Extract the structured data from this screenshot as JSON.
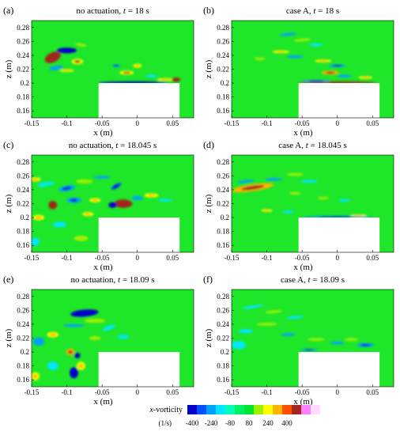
{
  "chart_data": [
    {
      "type": "heatmap",
      "panel_label": "(a)",
      "title_prefix": "no actuation, ",
      "title_var": "t",
      "title_suffix": " = 18 s",
      "xlabel": "x (m)",
      "ylabel": "z (m)",
      "xlim": [
        -0.15,
        0.08
      ],
      "ylim": [
        0.15,
        0.29
      ],
      "xticks": [
        -0.15,
        -0.1,
        -0.05,
        0,
        0.05
      ],
      "xticklabels": [
        "-0.15",
        "-0.1",
        "-0.05",
        "0",
        "0.05"
      ],
      "yticks": [
        0.16,
        0.18,
        0.2,
        0.22,
        0.24,
        0.26,
        0.28
      ],
      "yticklabels": [
        "0.16",
        "0.18",
        "0.2",
        "0.22",
        "0.24",
        "0.26",
        "0.28"
      ],
      "obstacle": {
        "x": [
          -0.055,
          0.06
        ],
        "z": [
          0.15,
          0.2
        ]
      },
      "vortices": [
        {
          "x": -0.12,
          "z": 0.237,
          "rx": 0.012,
          "rz": 0.007,
          "v": 400,
          "rot": 25
        },
        {
          "x": -0.1,
          "z": 0.247,
          "rx": 0.014,
          "rz": 0.004,
          "v": -400,
          "rot": 0
        },
        {
          "x": -0.085,
          "z": 0.231,
          "rx": 0.008,
          "rz": 0.004,
          "v": 300,
          "rot": 0
        },
        {
          "x": -0.115,
          "z": 0.222,
          "rx": 0.01,
          "rz": 0.003,
          "v": -200,
          "rot": 10
        },
        {
          "x": -0.1,
          "z": 0.218,
          "rx": 0.01,
          "rz": 0.002,
          "v": 240,
          "rot": 0
        },
        {
          "x": -0.08,
          "z": 0.255,
          "rx": 0.008,
          "rz": 0.002,
          "v": 160,
          "rot": -10
        },
        {
          "x": -0.03,
          "z": 0.225,
          "rx": 0.006,
          "rz": 0.002,
          "v": -240,
          "rot": 0
        },
        {
          "x": -0.015,
          "z": 0.215,
          "rx": 0.01,
          "rz": 0.003,
          "v": 300,
          "rot": 0
        },
        {
          "x": 0.0,
          "z": 0.225,
          "rx": 0.006,
          "rz": 0.003,
          "v": 240,
          "rot": 0
        },
        {
          "x": -0.005,
          "z": 0.201,
          "rx": 0.05,
          "rz": 0.0015,
          "v": -400,
          "rot": 0
        },
        {
          "x": 0.04,
          "z": 0.205,
          "rx": 0.012,
          "rz": 0.002,
          "v": 240,
          "rot": 0
        },
        {
          "x": 0.055,
          "z": 0.205,
          "rx": 0.006,
          "rz": 0.003,
          "v": 400,
          "rot": 0
        },
        {
          "x": 0.02,
          "z": 0.21,
          "rx": 0.008,
          "rz": 0.002,
          "v": -160,
          "rot": 0
        }
      ]
    },
    {
      "type": "heatmap",
      "panel_label": "(b)",
      "title_prefix": "case A, ",
      "title_var": "t",
      "title_suffix": " = 18 s",
      "xlabel": "x (m)",
      "ylabel": "z (m)",
      "xlim": [
        -0.15,
        0.08
      ],
      "ylim": [
        0.15,
        0.29
      ],
      "xticks": [
        -0.15,
        -0.1,
        -0.05,
        0,
        0.05
      ],
      "xticklabels": [
        "-0.15",
        "-0.1",
        "-0.05",
        "0",
        "0.05"
      ],
      "yticks": [
        0.16,
        0.18,
        0.2,
        0.22,
        0.24,
        0.26,
        0.28
      ],
      "yticklabels": [
        "0.16",
        "0.18",
        "0.2",
        "0.22",
        "0.24",
        "0.26",
        "0.28"
      ],
      "obstacle": {
        "x": [
          -0.055,
          0.06
        ],
        "z": [
          0.15,
          0.2
        ]
      },
      "vortices": [
        {
          "x": -0.07,
          "z": 0.27,
          "rx": 0.012,
          "rz": 0.002,
          "v": -200,
          "rot": 5
        },
        {
          "x": -0.05,
          "z": 0.262,
          "rx": 0.012,
          "rz": 0.002,
          "v": 200,
          "rot": 5
        },
        {
          "x": -0.03,
          "z": 0.255,
          "rx": 0.01,
          "rz": 0.002,
          "v": -160,
          "rot": 0
        },
        {
          "x": -0.08,
          "z": 0.245,
          "rx": 0.012,
          "rz": 0.002,
          "v": 240,
          "rot": 0
        },
        {
          "x": -0.06,
          "z": 0.238,
          "rx": 0.012,
          "rz": 0.002,
          "v": -200,
          "rot": 0
        },
        {
          "x": -0.11,
          "z": 0.235,
          "rx": 0.008,
          "rz": 0.002,
          "v": 200,
          "rot": 0
        },
        {
          "x": -0.02,
          "z": 0.232,
          "rx": 0.012,
          "rz": 0.002,
          "v": 240,
          "rot": 0
        },
        {
          "x": 0.0,
          "z": 0.225,
          "rx": 0.012,
          "rz": 0.002,
          "v": -240,
          "rot": 0
        },
        {
          "x": -0.01,
          "z": 0.215,
          "rx": 0.012,
          "rz": 0.003,
          "v": 320,
          "rot": 0
        },
        {
          "x": 0.01,
          "z": 0.21,
          "rx": 0.01,
          "rz": 0.002,
          "v": -200,
          "rot": 0
        },
        {
          "x": 0.0,
          "z": 0.201,
          "rx": 0.055,
          "rz": 0.0015,
          "v": 400,
          "rot": 0
        },
        {
          "x": -0.03,
          "z": 0.203,
          "rx": 0.02,
          "rz": 0.0015,
          "v": -240,
          "rot": 0
        },
        {
          "x": 0.04,
          "z": 0.208,
          "rx": 0.01,
          "rz": 0.002,
          "v": 240,
          "rot": 0
        }
      ]
    },
    {
      "type": "heatmap",
      "panel_label": "(c)",
      "title_prefix": "no actuation, ",
      "title_var": "t",
      "title_suffix": " = 18.045 s",
      "xlabel": "x (m)",
      "ylabel": "z (m)",
      "xlim": [
        -0.15,
        0.08
      ],
      "ylim": [
        0.15,
        0.29
      ],
      "xticks": [
        -0.15,
        -0.1,
        -0.05,
        0,
        0.05
      ],
      "xticklabels": [
        "-0.15",
        "-0.1",
        "-0.05",
        "0",
        "0.05"
      ],
      "yticks": [
        0.16,
        0.18,
        0.2,
        0.22,
        0.24,
        0.26,
        0.28
      ],
      "yticklabels": [
        "0.16",
        "0.18",
        "0.2",
        "0.22",
        "0.24",
        "0.26",
        "0.28"
      ],
      "obstacle": {
        "x": [
          -0.055,
          0.06
        ],
        "z": [
          0.15,
          0.2
        ]
      },
      "vortices": [
        {
          "x": -0.145,
          "z": 0.255,
          "rx": 0.008,
          "rz": 0.003,
          "v": 240,
          "rot": 0
        },
        {
          "x": -0.13,
          "z": 0.248,
          "rx": 0.012,
          "rz": 0.003,
          "v": -160,
          "rot": 10
        },
        {
          "x": -0.1,
          "z": 0.242,
          "rx": 0.012,
          "rz": 0.004,
          "v": -240,
          "rot": 10
        },
        {
          "x": -0.075,
          "z": 0.252,
          "rx": 0.012,
          "rz": 0.003,
          "v": 160,
          "rot": 0
        },
        {
          "x": -0.05,
          "z": 0.258,
          "rx": 0.012,
          "rz": 0.002,
          "v": -200,
          "rot": 0
        },
        {
          "x": -0.03,
          "z": 0.245,
          "rx": 0.008,
          "rz": 0.003,
          "v": -320,
          "rot": 30
        },
        {
          "x": -0.09,
          "z": 0.225,
          "rx": 0.01,
          "rz": 0.004,
          "v": -240,
          "rot": 0
        },
        {
          "x": -0.12,
          "z": 0.218,
          "rx": 0.006,
          "rz": 0.006,
          "v": 400,
          "rot": 0
        },
        {
          "x": -0.06,
          "z": 0.225,
          "rx": 0.008,
          "rz": 0.003,
          "v": 240,
          "rot": 0
        },
        {
          "x": -0.02,
          "z": 0.22,
          "rx": 0.013,
          "rz": 0.006,
          "v": 400,
          "rot": 0
        },
        {
          "x": -0.035,
          "z": 0.218,
          "rx": 0.006,
          "rz": 0.004,
          "v": -400,
          "rot": 0
        },
        {
          "x": 0.0,
          "z": 0.228,
          "rx": 0.008,
          "rz": 0.003,
          "v": -200,
          "rot": 0
        },
        {
          "x": 0.02,
          "z": 0.232,
          "rx": 0.01,
          "rz": 0.003,
          "v": 240,
          "rot": 0
        },
        {
          "x": 0.04,
          "z": 0.225,
          "rx": 0.01,
          "rz": 0.002,
          "v": -160,
          "rot": 0
        },
        {
          "x": -0.07,
          "z": 0.205,
          "rx": 0.008,
          "rz": 0.003,
          "v": 240,
          "rot": 0
        },
        {
          "x": -0.11,
          "z": 0.19,
          "rx": 0.01,
          "rz": 0.004,
          "v": -160,
          "rot": 0
        },
        {
          "x": -0.14,
          "z": 0.2,
          "rx": 0.008,
          "rz": 0.004,
          "v": 240,
          "rot": 0
        },
        {
          "x": -0.145,
          "z": 0.165,
          "rx": 0.006,
          "rz": 0.006,
          "v": -160,
          "rot": 0
        },
        {
          "x": -0.08,
          "z": 0.17,
          "rx": 0.01,
          "rz": 0.004,
          "v": 160,
          "rot": 0
        }
      ]
    },
    {
      "type": "heatmap",
      "panel_label": "(d)",
      "title_prefix": "case A, ",
      "title_var": "t",
      "title_suffix": " = 18.045 s",
      "xlabel": "x (m)",
      "ylabel": "z (m)",
      "xlim": [
        -0.15,
        0.08
      ],
      "ylim": [
        0.15,
        0.29
      ],
      "xticks": [
        -0.15,
        -0.1,
        -0.05,
        0,
        0.05
      ],
      "xticklabels": [
        "-0.15",
        "-0.1",
        "-0.05",
        "0",
        "0.05"
      ],
      "yticks": [
        0.16,
        0.18,
        0.2,
        0.22,
        0.24,
        0.26,
        0.28
      ],
      "yticklabels": [
        "0.16",
        "0.18",
        "0.2",
        "0.22",
        "0.24",
        "0.26",
        "0.28"
      ],
      "obstacle": {
        "x": [
          -0.055,
          0.06
        ],
        "z": [
          0.15,
          0.2
        ]
      },
      "vortices": [
        {
          "x": -0.12,
          "z": 0.243,
          "rx": 0.03,
          "rz": 0.005,
          "v": 320,
          "rot": 8
        },
        {
          "x": -0.13,
          "z": 0.252,
          "rx": 0.012,
          "rz": 0.002,
          "v": -200,
          "rot": 5
        },
        {
          "x": -0.09,
          "z": 0.255,
          "rx": 0.012,
          "rz": 0.002,
          "v": -200,
          "rot": 0
        },
        {
          "x": -0.06,
          "z": 0.262,
          "rx": 0.012,
          "rz": 0.002,
          "v": 200,
          "rot": 0
        },
        {
          "x": -0.04,
          "z": 0.252,
          "rx": 0.012,
          "rz": 0.002,
          "v": -160,
          "rot": 0
        },
        {
          "x": -0.06,
          "z": 0.235,
          "rx": 0.008,
          "rz": 0.002,
          "v": 200,
          "rot": 0
        },
        {
          "x": -0.02,
          "z": 0.228,
          "rx": 0.008,
          "rz": 0.002,
          "v": 200,
          "rot": 0
        },
        {
          "x": 0.01,
          "z": 0.225,
          "rx": 0.008,
          "rz": 0.002,
          "v": -160,
          "rot": 0
        },
        {
          "x": -0.1,
          "z": 0.21,
          "rx": 0.008,
          "rz": 0.002,
          "v": 240,
          "rot": 0
        },
        {
          "x": -0.07,
          "z": 0.208,
          "rx": 0.008,
          "rz": 0.002,
          "v": -160,
          "rot": 0
        },
        {
          "x": 0.0,
          "z": 0.201,
          "rx": 0.05,
          "rz": 0.0015,
          "v": -240,
          "rot": 0
        },
        {
          "x": 0.03,
          "z": 0.203,
          "rx": 0.012,
          "rz": 0.0015,
          "v": 240,
          "rot": 0
        }
      ]
    },
    {
      "type": "heatmap",
      "panel_label": "(e)",
      "title_prefix": "no actuation, ",
      "title_var": "t",
      "title_suffix": " = 18.09 s",
      "xlabel": "x (m)",
      "ylabel": "z (m)",
      "xlim": [
        -0.15,
        0.08
      ],
      "ylim": [
        0.15,
        0.29
      ],
      "xticks": [
        -0.15,
        -0.1,
        -0.05,
        0,
        0.05
      ],
      "xticklabels": [
        "-0.15",
        "-0.1",
        "-0.05",
        "0",
        "0.05"
      ],
      "yticks": [
        0.16,
        0.18,
        0.2,
        0.22,
        0.24,
        0.26,
        0.28
      ],
      "yticklabels": [
        "0.16",
        "0.18",
        "0.2",
        "0.22",
        "0.24",
        "0.26",
        "0.28"
      ],
      "obstacle": {
        "x": [
          -0.055,
          0.06
        ],
        "z": [
          0.15,
          0.2
        ]
      },
      "vortices": [
        {
          "x": -0.075,
          "z": 0.256,
          "rx": 0.02,
          "rz": 0.005,
          "v": -400,
          "rot": 5
        },
        {
          "x": -0.06,
          "z": 0.245,
          "rx": 0.015,
          "rz": 0.003,
          "v": 200,
          "rot": 0
        },
        {
          "x": -0.09,
          "z": 0.238,
          "rx": 0.015,
          "rz": 0.002,
          "v": -200,
          "rot": 0
        },
        {
          "x": -0.04,
          "z": 0.235,
          "rx": 0.01,
          "rz": 0.003,
          "v": -160,
          "rot": 20
        },
        {
          "x": -0.12,
          "z": 0.225,
          "rx": 0.008,
          "rz": 0.004,
          "v": 240,
          "rot": 0
        },
        {
          "x": -0.14,
          "z": 0.215,
          "rx": 0.008,
          "rz": 0.006,
          "v": -200,
          "rot": 0
        },
        {
          "x": -0.095,
          "z": 0.2,
          "rx": 0.006,
          "rz": 0.005,
          "v": 320,
          "rot": 0
        },
        {
          "x": -0.085,
          "z": 0.195,
          "rx": 0.004,
          "rz": 0.004,
          "v": -400,
          "rot": 0
        },
        {
          "x": -0.09,
          "z": 0.17,
          "rx": 0.006,
          "rz": 0.008,
          "v": -400,
          "rot": 0
        },
        {
          "x": -0.08,
          "z": 0.18,
          "rx": 0.006,
          "rz": 0.006,
          "v": 240,
          "rot": 0
        },
        {
          "x": -0.12,
          "z": 0.18,
          "rx": 0.008,
          "rz": 0.006,
          "v": -160,
          "rot": 0
        },
        {
          "x": -0.145,
          "z": 0.165,
          "rx": 0.006,
          "rz": 0.006,
          "v": 240,
          "rot": 0
        },
        {
          "x": -0.06,
          "z": 0.22,
          "rx": 0.008,
          "rz": 0.003,
          "v": 160,
          "rot": 0
        },
        {
          "x": -0.02,
          "z": 0.222,
          "rx": 0.008,
          "rz": 0.003,
          "v": -160,
          "rot": 0
        }
      ]
    },
    {
      "type": "heatmap",
      "panel_label": "(f)",
      "title_prefix": "case A, ",
      "title_var": "t",
      "title_suffix": " = 18.09 s",
      "xlabel": "x (m)",
      "ylabel": "z (m)",
      "xlim": [
        -0.15,
        0.08
      ],
      "ylim": [
        0.15,
        0.29
      ],
      "xticks": [
        -0.15,
        -0.1,
        -0.05,
        0,
        0.05
      ],
      "xticklabels": [
        "-0.15",
        "-0.1",
        "-0.05",
        "0",
        "0.05"
      ],
      "yticks": [
        0.16,
        0.18,
        0.2,
        0.22,
        0.24,
        0.26,
        0.28
      ],
      "yticklabels": [
        "0.16",
        "0.18",
        "0.2",
        "0.22",
        "0.24",
        "0.26",
        "0.28"
      ],
      "obstacle": {
        "x": [
          -0.055,
          0.06
        ],
        "z": [
          0.15,
          0.2
        ]
      },
      "vortices": [
        {
          "x": -0.12,
          "z": 0.265,
          "rx": 0.015,
          "rz": 0.002,
          "v": -160,
          "rot": 10
        },
        {
          "x": -0.09,
          "z": 0.258,
          "rx": 0.012,
          "rz": 0.002,
          "v": 160,
          "rot": 5
        },
        {
          "x": -0.06,
          "z": 0.25,
          "rx": 0.012,
          "rz": 0.002,
          "v": -160,
          "rot": 5
        },
        {
          "x": -0.1,
          "z": 0.24,
          "rx": 0.015,
          "rz": 0.002,
          "v": 160,
          "rot": 0
        },
        {
          "x": -0.13,
          "z": 0.23,
          "rx": 0.01,
          "rz": 0.003,
          "v": -160,
          "rot": 0
        },
        {
          "x": -0.14,
          "z": 0.21,
          "rx": 0.01,
          "rz": 0.006,
          "v": -100,
          "rot": 0
        },
        {
          "x": -0.07,
          "z": 0.225,
          "rx": 0.01,
          "rz": 0.002,
          "v": -200,
          "rot": 0
        },
        {
          "x": -0.03,
          "z": 0.218,
          "rx": 0.012,
          "rz": 0.002,
          "v": 200,
          "rot": 0
        },
        {
          "x": 0.0,
          "z": 0.213,
          "rx": 0.01,
          "rz": 0.002,
          "v": -200,
          "rot": 0
        },
        {
          "x": 0.04,
          "z": 0.21,
          "rx": 0.012,
          "rz": 0.003,
          "v": -240,
          "rot": 0
        },
        {
          "x": 0.02,
          "z": 0.218,
          "rx": 0.01,
          "rz": 0.002,
          "v": 160,
          "rot": 0
        },
        {
          "x": -0.04,
          "z": 0.203,
          "rx": 0.012,
          "rz": 0.0015,
          "v": -240,
          "rot": 0
        }
      ]
    }
  ],
  "colorbar": {
    "label_var": "x",
    "label_text": "-vorticity",
    "units": "(1/s)",
    "tick_labels": [
      "-400",
      "-240",
      "-80",
      "80",
      "240",
      "400"
    ],
    "tick_values": [
      -400,
      -240,
      -80,
      80,
      240,
      400
    ],
    "levels": [
      -400,
      -320,
      -240,
      -160,
      -80,
      0,
      80,
      160,
      240,
      320,
      400,
      480
    ],
    "colors": [
      "#0000c8",
      "#0050ff",
      "#00a0ff",
      "#00e6ff",
      "#00ffb4",
      "#00f064",
      "#00e632",
      "#a0f000",
      "#ffff00",
      "#ffb400",
      "#ff5000",
      "#a0281e",
      "#ff80ff",
      "#ffdcff"
    ]
  },
  "colors": {
    "background_field": "#1ee628",
    "obstacle": "#ffffff"
  }
}
